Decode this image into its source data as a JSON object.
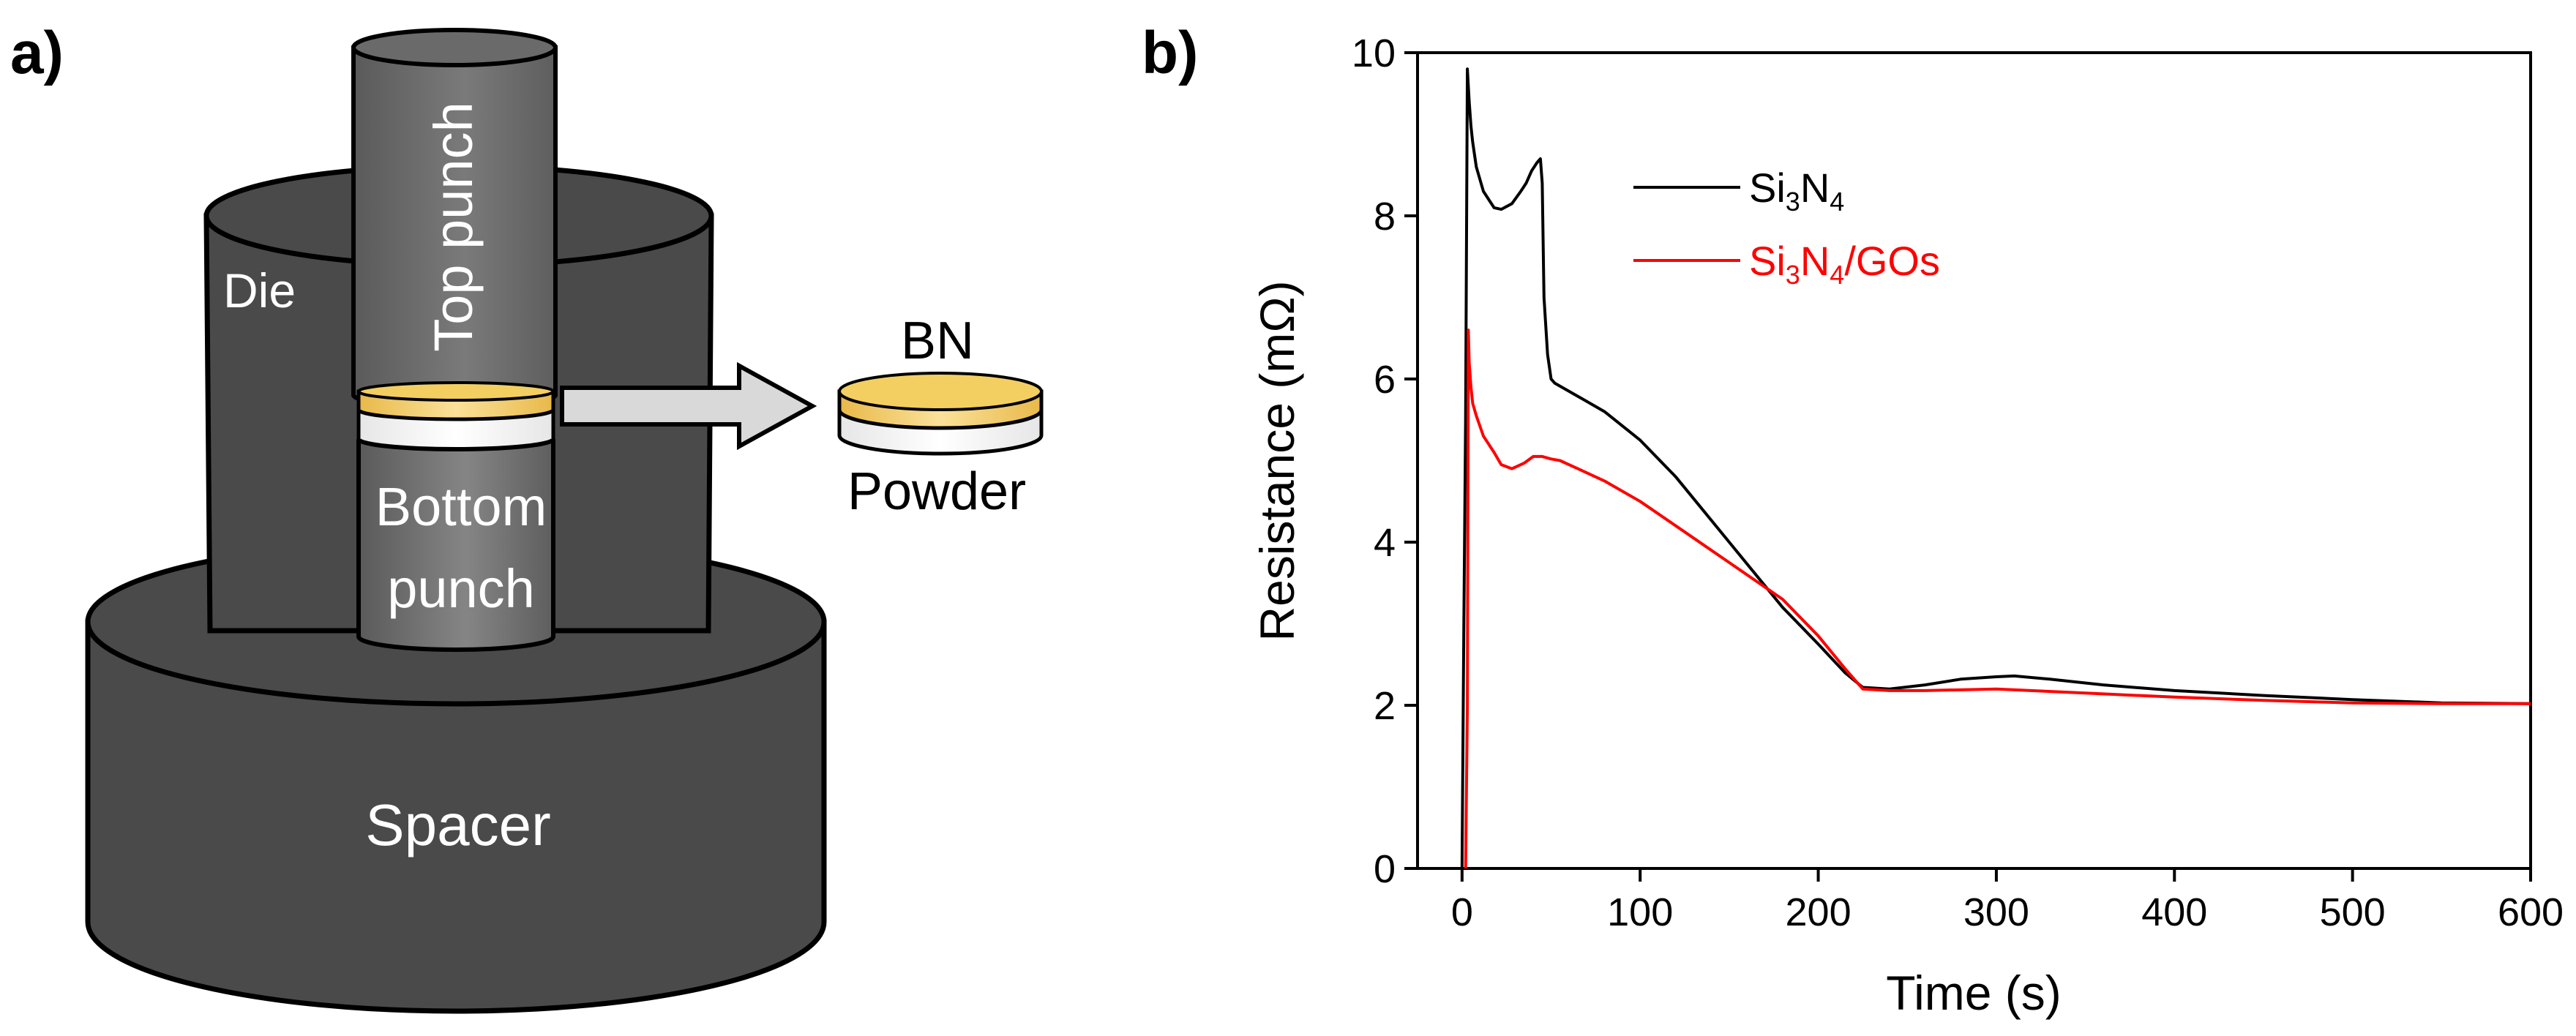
{
  "panels": {
    "a": {
      "letter": "a)",
      "labels": {
        "die": "Die",
        "top_punch": "Top punch",
        "bottom_punch_line1": "Bottom",
        "bottom_punch_line2": "punch",
        "spacer": "Spacer",
        "bn": "BN",
        "powder": "Powder"
      },
      "colors": {
        "dark_gray": "#4a4a4a",
        "punch_gray": "#666666",
        "bn_yellow": "#f3cf62",
        "powder_white": "#f5f5f5",
        "arrow_gray": "#d9d9d9"
      }
    },
    "b": {
      "letter": "b)"
    }
  },
  "chart_data": {
    "type": "line",
    "title": "",
    "xlabel": "Time (s)",
    "ylabel": "Resistance (mΩ)",
    "xlim": [
      -25,
      600
    ],
    "ylim": [
      0,
      10
    ],
    "xticks": [
      0,
      100,
      200,
      300,
      400,
      500,
      600
    ],
    "yticks": [
      0,
      2,
      4,
      6,
      8,
      10
    ],
    "grid": false,
    "legend_position": "top-left",
    "series": [
      {
        "name": "Si3N4",
        "legend_base": "Si",
        "legend_sub1": "3",
        "legend_mid": "N",
        "legend_sub2": "4",
        "legend_suffix": "",
        "color": "#000000",
        "x": [
          0,
          1,
          2,
          3,
          4,
          5,
          6,
          8,
          12,
          18,
          22,
          28,
          33,
          36,
          39,
          42,
          44,
          45,
          46,
          48,
          50,
          52,
          60,
          80,
          100,
          120,
          150,
          180,
          200,
          215,
          225,
          240,
          260,
          280,
          300,
          310,
          330,
          360,
          400,
          450,
          500,
          550,
          600
        ],
        "y": [
          0,
          3.0,
          5.5,
          9.8,
          9.4,
          9.1,
          8.9,
          8.6,
          8.3,
          8.1,
          8.08,
          8.15,
          8.3,
          8.4,
          8.55,
          8.65,
          8.7,
          8.4,
          7.0,
          6.3,
          6.0,
          5.95,
          5.85,
          5.6,
          5.25,
          4.8,
          4.0,
          3.2,
          2.75,
          2.4,
          2.22,
          2.2,
          2.25,
          2.32,
          2.35,
          2.36,
          2.32,
          2.25,
          2.18,
          2.12,
          2.07,
          2.03,
          2.02
        ]
      },
      {
        "name": "Si3N4/GOs",
        "legend_base": "Si",
        "legend_sub1": "3",
        "legend_mid": "N",
        "legend_sub2": "4",
        "legend_suffix": "/GOs",
        "color": "#ff0000",
        "x": [
          2,
          3,
          3.5,
          4,
          5,
          6,
          8,
          12,
          18,
          22,
          28,
          35,
          40,
          45,
          50,
          55,
          65,
          80,
          100,
          120,
          150,
          180,
          200,
          215,
          225,
          240,
          260,
          300,
          350,
          400,
          450,
          500,
          550,
          600
        ],
        "y": [
          0,
          2.0,
          6.6,
          6.2,
          5.9,
          5.7,
          5.55,
          5.3,
          5.1,
          4.95,
          4.9,
          4.97,
          5.05,
          5.05,
          5.02,
          5.0,
          4.9,
          4.75,
          4.5,
          4.2,
          3.75,
          3.3,
          2.85,
          2.45,
          2.2,
          2.18,
          2.18,
          2.2,
          2.15,
          2.1,
          2.06,
          2.03,
          2.02,
          2.02
        ]
      }
    ]
  }
}
